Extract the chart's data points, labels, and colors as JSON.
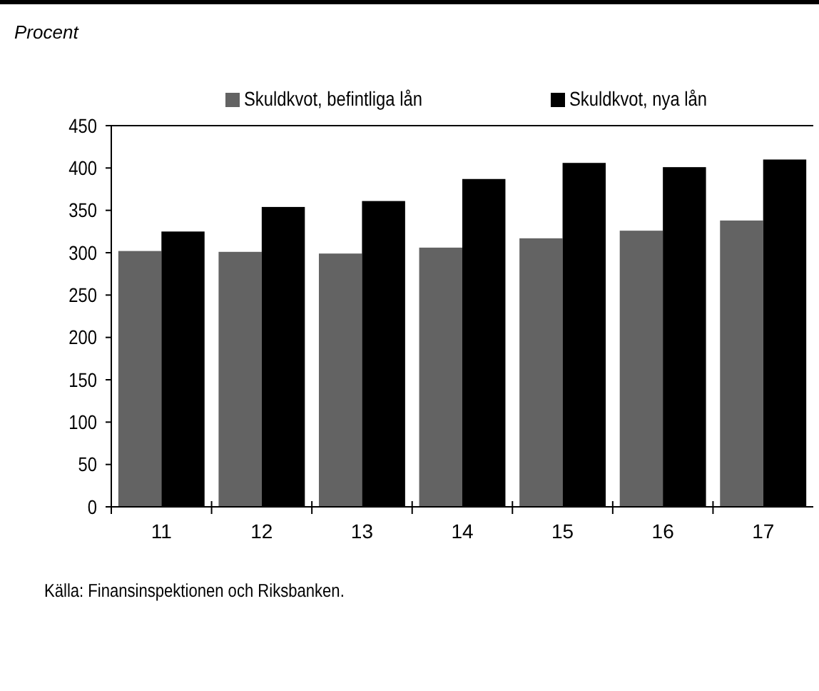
{
  "chart_data": {
    "type": "bar",
    "ylabel": "Procent",
    "categories": [
      "11",
      "12",
      "13",
      "14",
      "15",
      "16",
      "17"
    ],
    "series": [
      {
        "name": "Skuldkvot, befintliga lån",
        "color": "#636363",
        "values": [
          302,
          301,
          299,
          306,
          317,
          326,
          338
        ]
      },
      {
        "name": "Skuldkvot, nya lån",
        "color": "#000000",
        "values": [
          325,
          354,
          361,
          387,
          406,
          401,
          410
        ]
      }
    ],
    "ylim": [
      0,
      450
    ],
    "yticks": [
      0,
      50,
      100,
      150,
      200,
      250,
      300,
      350,
      400,
      450
    ],
    "grid": false,
    "legend": "top",
    "annotations": [
      "Källa: Finansinspektionen och Riksbanken."
    ]
  }
}
